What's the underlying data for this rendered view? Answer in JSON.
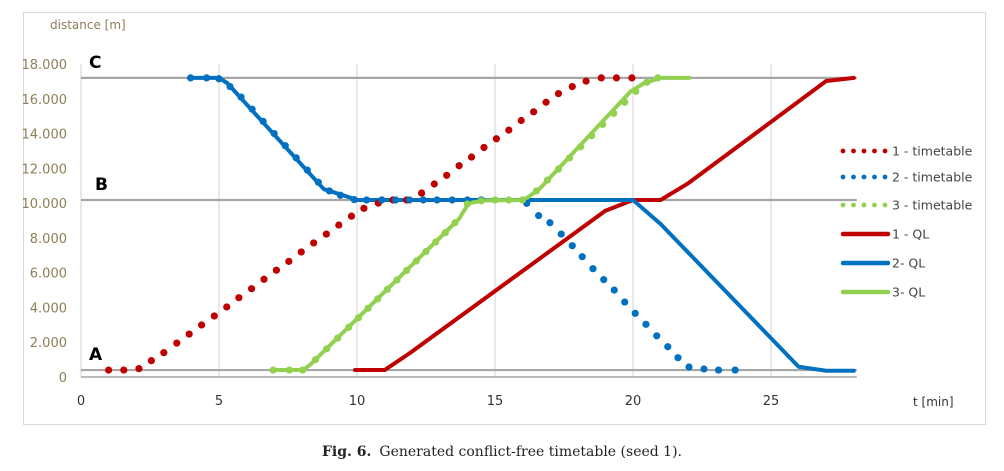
{
  "caption": {
    "label": "Fig. 6.",
    "text": "Generated conflict-free timetable (seed 1)."
  },
  "chart_data": {
    "type": "line",
    "title": "",
    "xlabel": "t [min]",
    "ylabel": "distance [m]",
    "xlim": [
      0,
      28
    ],
    "ylim": [
      0,
      18000
    ],
    "x_ticks": [
      0,
      5,
      10,
      15,
      20,
      25
    ],
    "y_ticks": [
      0,
      2000,
      4000,
      6000,
      8000,
      10000,
      12000,
      14000,
      16000,
      18000
    ],
    "y_tick_labels": [
      "0",
      "2.000",
      "4.000",
      "6.000",
      "8.000",
      "10.000",
      "12.000",
      "14.000",
      "16.000",
      "18.000"
    ],
    "grid": {
      "vertical": true,
      "horizontal": false
    },
    "legend_position": "right",
    "reference_lines": [
      {
        "label": "A",
        "value": 400
      },
      {
        "label": "B",
        "value": 10180
      },
      {
        "label": "C",
        "value": 17200
      }
    ],
    "colors": {
      "red": "#c00000",
      "blue": "#0070c0",
      "green": "#92d050",
      "reference": "#a6a6a6",
      "grid": "#d9d9d9"
    },
    "series": [
      {
        "name": "1 - timetable",
        "style": "dotted",
        "color": "#c00000",
        "points": [
          [
            1.0,
            400
          ],
          [
            1.55,
            400
          ],
          [
            2.1,
            480
          ],
          [
            2.55,
            940
          ],
          [
            3.0,
            1400
          ],
          [
            3.47,
            1950
          ],
          [
            3.92,
            2470
          ],
          [
            4.37,
            2990
          ],
          [
            4.83,
            3510
          ],
          [
            5.28,
            4030
          ],
          [
            5.72,
            4560
          ],
          [
            6.18,
            5080
          ],
          [
            6.63,
            5620
          ],
          [
            7.08,
            6140
          ],
          [
            7.53,
            6650
          ],
          [
            7.98,
            7190
          ],
          [
            8.43,
            7710
          ],
          [
            8.89,
            8220
          ],
          [
            9.34,
            8740
          ],
          [
            9.8,
            9250
          ],
          [
            10.25,
            9700
          ],
          [
            10.77,
            10000
          ],
          [
            11.3,
            10180
          ],
          [
            11.8,
            10180
          ],
          [
            12.34,
            10580
          ],
          [
            12.8,
            11100
          ],
          [
            13.25,
            11600
          ],
          [
            13.7,
            12150
          ],
          [
            14.15,
            12650
          ],
          [
            14.6,
            13200
          ],
          [
            15.05,
            13700
          ],
          [
            15.5,
            14200
          ],
          [
            15.95,
            14750
          ],
          [
            16.4,
            15250
          ],
          [
            16.85,
            15800
          ],
          [
            17.3,
            16300
          ],
          [
            17.8,
            16700
          ],
          [
            18.3,
            17020
          ],
          [
            18.85,
            17200
          ],
          [
            19.4,
            17200
          ],
          [
            19.96,
            17200
          ]
        ]
      },
      {
        "name": "2 - timetable",
        "style": "dotted",
        "color": "#0070c0",
        "points": [
          [
            3.97,
            17200
          ],
          [
            4.55,
            17200
          ],
          [
            5.0,
            17150
          ],
          [
            5.4,
            16700
          ],
          [
            5.8,
            16100
          ],
          [
            6.2,
            15400
          ],
          [
            6.6,
            14700
          ],
          [
            7.0,
            14000
          ],
          [
            7.4,
            13300
          ],
          [
            7.8,
            12600
          ],
          [
            8.2,
            11900
          ],
          [
            8.6,
            11200
          ],
          [
            9.0,
            10700
          ],
          [
            9.4,
            10450
          ],
          [
            9.9,
            10200
          ],
          [
            10.35,
            10180
          ],
          [
            10.9,
            10180
          ],
          [
            11.4,
            10180
          ],
          [
            11.9,
            10180
          ],
          [
            12.4,
            10180
          ],
          [
            12.9,
            10180
          ],
          [
            13.45,
            10180
          ],
          [
            14.0,
            10180
          ],
          [
            14.5,
            10180
          ],
          [
            16.15,
            9990
          ],
          [
            16.58,
            9280
          ],
          [
            16.99,
            8870
          ],
          [
            17.4,
            8220
          ],
          [
            17.8,
            7550
          ],
          [
            18.16,
            6920
          ],
          [
            18.55,
            6230
          ],
          [
            18.94,
            5600
          ],
          [
            19.32,
            5000
          ],
          [
            19.7,
            4310
          ],
          [
            20.08,
            3660
          ],
          [
            20.47,
            3030
          ],
          [
            20.86,
            2370
          ],
          [
            21.26,
            1740
          ],
          [
            21.63,
            1110
          ],
          [
            22.03,
            575
          ],
          [
            22.57,
            460
          ],
          [
            23.1,
            400
          ],
          [
            23.7,
            400
          ]
        ]
      },
      {
        "name": "3 - timetable",
        "style": "dotted",
        "color": "#92d050",
        "points": [
          [
            6.96,
            400
          ],
          [
            7.55,
            400
          ],
          [
            8.03,
            400
          ],
          [
            8.5,
            1000
          ],
          [
            8.9,
            1620
          ],
          [
            9.3,
            2240
          ],
          [
            9.7,
            2860
          ],
          [
            10.05,
            3400
          ],
          [
            10.4,
            3950
          ],
          [
            10.75,
            4490
          ],
          [
            11.1,
            5040
          ],
          [
            11.45,
            5580
          ],
          [
            11.8,
            6130
          ],
          [
            12.15,
            6670
          ],
          [
            12.5,
            7220
          ],
          [
            12.85,
            7760
          ],
          [
            13.2,
            8300
          ],
          [
            13.55,
            8870
          ],
          [
            14.0,
            9950
          ],
          [
            14.5,
            10130
          ],
          [
            15.0,
            10180
          ],
          [
            15.5,
            10180
          ],
          [
            16.0,
            10180
          ],
          [
            16.5,
            10700
          ],
          [
            16.9,
            11320
          ],
          [
            17.3,
            11960
          ],
          [
            17.7,
            12600
          ],
          [
            18.1,
            13240
          ],
          [
            18.5,
            13880
          ],
          [
            18.9,
            14520
          ],
          [
            19.3,
            15160
          ],
          [
            19.7,
            15800
          ],
          [
            20.1,
            16430
          ],
          [
            20.5,
            16950
          ],
          [
            20.9,
            17200
          ]
        ]
      },
      {
        "name": "1 - QL",
        "style": "solid",
        "color": "#c00000",
        "points": [
          [
            9.93,
            400
          ],
          [
            11.0,
            400
          ],
          [
            11.9,
            1360
          ],
          [
            19.0,
            9560
          ],
          [
            20.0,
            10180
          ],
          [
            21.0,
            10180
          ],
          [
            22.0,
            11140
          ],
          [
            27.0,
            17020
          ],
          [
            28.0,
            17200
          ]
        ]
      },
      {
        "name": "2- QL",
        "style": "solid",
        "color": "#0070c0",
        "points": [
          [
            3.97,
            17200
          ],
          [
            5.0,
            17200
          ],
          [
            5.3,
            16900
          ],
          [
            8.8,
            10800
          ],
          [
            9.5,
            10450
          ],
          [
            10.0,
            10180
          ],
          [
            20.0,
            10180
          ],
          [
            21.0,
            8800
          ],
          [
            26.0,
            590
          ],
          [
            27.0,
            360
          ],
          [
            28.0,
            360
          ]
        ]
      },
      {
        "name": "3- QL",
        "style": "solid",
        "color": "#92d050",
        "points": [
          [
            6.96,
            400
          ],
          [
            8.05,
            400
          ],
          [
            8.3,
            700
          ],
          [
            13.7,
            9100
          ],
          [
            14.05,
            10000
          ],
          [
            14.6,
            10150
          ],
          [
            16.05,
            10180
          ],
          [
            16.6,
            10800
          ],
          [
            19.9,
            16400
          ],
          [
            20.4,
            16900
          ],
          [
            21.0,
            17200
          ],
          [
            22.05,
            17200
          ]
        ]
      }
    ]
  }
}
